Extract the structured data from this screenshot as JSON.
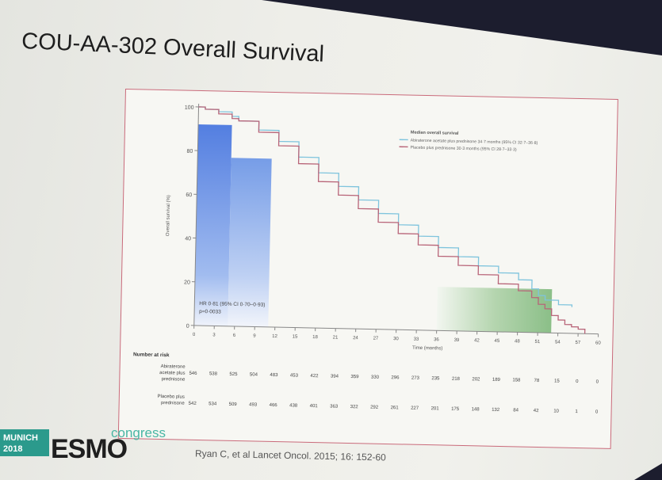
{
  "slide": {
    "title": "COU-AA-302 Overall Survival",
    "citation": "Ryan C, et al Lancet Oncol. 2015; 16: 152-60"
  },
  "logo": {
    "city": "MUNICH",
    "year": "2018",
    "brand": "ESMO",
    "suffix": "congress",
    "colors": {
      "green": "#2b9a8c",
      "teal": "#49b6a4",
      "text": "#1f1f1f"
    }
  },
  "chart_data": {
    "type": "line",
    "ylabel": "Overall survival (%)",
    "xlabel": "Time (months)",
    "xlim": [
      0,
      60
    ],
    "ylim": [
      0,
      100
    ],
    "x_ticks": [
      0,
      3,
      6,
      9,
      12,
      15,
      18,
      21,
      24,
      27,
      30,
      33,
      36,
      39,
      42,
      45,
      48,
      51,
      54,
      57,
      60
    ],
    "y_ticks": [
      0,
      20,
      40,
      60,
      80,
      100
    ],
    "legend": {
      "title": "Median overall survival",
      "position": "top-right",
      "entries": [
        "Abiraterone acetate plus prednisone 34·7 months (95% CI 32·7–36·8)",
        "Placebo plus prednisone 30·3 months (95% CI 28·7–33·3)"
      ]
    },
    "annotation": {
      "hr": "HR 0·81 (95% CI 0·70–0·93)",
      "p": "p=0·0033"
    },
    "series": [
      {
        "name": "Abiraterone acetate plus prednisone",
        "color": "#7fc4dd",
        "x": [
          0,
          1,
          3,
          5,
          6,
          9,
          12,
          15,
          18,
          21,
          24,
          27,
          30,
          33,
          36,
          39,
          42,
          45,
          48,
          50,
          51,
          52,
          54,
          56
        ],
        "y": [
          100,
          99,
          98,
          96,
          94,
          90,
          85,
          78,
          71,
          65,
          59,
          53,
          48,
          43,
          38,
          34,
          30,
          27,
          24,
          20,
          17,
          15,
          13,
          12
        ]
      },
      {
        "name": "Placebo plus prednisone",
        "color": "#b86478",
        "x": [
          0,
          1,
          3,
          5,
          6,
          9,
          12,
          15,
          18,
          21,
          24,
          27,
          30,
          33,
          36,
          39,
          42,
          45,
          48,
          50,
          51,
          52,
          53,
          54,
          55,
          56,
          57,
          58
        ],
        "y": [
          100,
          99,
          97,
          95,
          94,
          89,
          83,
          75,
          67,
          61,
          55,
          49,
          44,
          39,
          34,
          30,
          26,
          22,
          19,
          16,
          13,
          11,
          8,
          6,
          4,
          3,
          2,
          0
        ]
      }
    ],
    "overlays": [
      {
        "x0": 0,
        "x1": 5,
        "level": 92,
        "color": "#4d7fe0"
      },
      {
        "x0": 5,
        "x1": 11,
        "level": 77,
        "color": "#5b8de6"
      },
      {
        "x0": 36,
        "x1": 53,
        "level": 20,
        "color": "#7fb87f"
      }
    ],
    "risk_table": {
      "header": "Number at risk",
      "rows": [
        {
          "label": [
            "Abiraterone",
            "acetate plus",
            "prednisone"
          ],
          "values": [
            "546",
            "538",
            "525",
            "504",
            "483",
            "453",
            "422",
            "394",
            "359",
            "330",
            "296",
            "273",
            "235",
            "218",
            "202",
            "189",
            "158",
            "78",
            "15",
            "0",
            "0"
          ]
        },
        {
          "label": [
            "Placebo plus",
            "prednisone"
          ],
          "values": [
            "542",
            "534",
            "509",
            "493",
            "466",
            "438",
            "401",
            "363",
            "322",
            "292",
            "261",
            "227",
            "201",
            "175",
            "148",
            "132",
            "84",
            "42",
            "10",
            "1",
            "0"
          ]
        }
      ]
    }
  }
}
